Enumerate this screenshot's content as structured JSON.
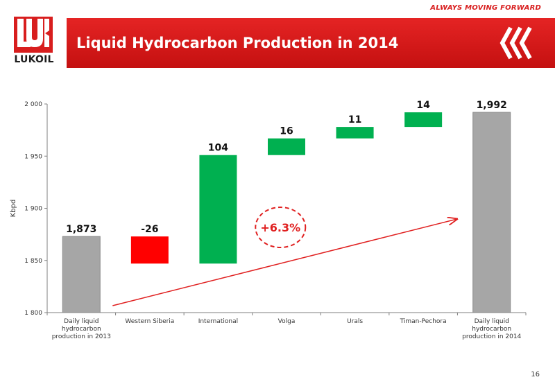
{
  "header": {
    "tagline": "ALWAYS MOVING FORWARD",
    "title": "Liquid Hydrocarbon Production in 2014",
    "logo_text": "LUKOIL",
    "brand_color": "#d81e1e"
  },
  "chart_data": {
    "type": "bar",
    "subtype": "waterfall",
    "ylabel": "Kbpd",
    "ylim": [
      1800,
      2000
    ],
    "yticks": [
      1800,
      1850,
      1900,
      1950,
      2000
    ],
    "ytick_labels": [
      "1 800",
      "1 850",
      "1 900",
      "1 950",
      "2 000"
    ],
    "categories": [
      [
        "Daily liquid",
        "hydrocarbon",
        "production in 2013"
      ],
      [
        "Western Siberia"
      ],
      [
        "International"
      ],
      [
        "Volga"
      ],
      [
        "Urals"
      ],
      [
        "Timan-Pechora"
      ],
      [
        "Daily liquid",
        "hydrocarbon",
        "production in 2014"
      ]
    ],
    "bars": [
      {
        "label": "1,873",
        "start": 1800,
        "end": 1873,
        "kind": "total"
      },
      {
        "label": "-26",
        "start": 1873,
        "end": 1847,
        "kind": "decrease"
      },
      {
        "label": "104",
        "start": 1847,
        "end": 1951,
        "kind": "increase"
      },
      {
        "label": "16",
        "start": 1951,
        "end": 1967,
        "kind": "increase"
      },
      {
        "label": "11",
        "start": 1967,
        "end": 1978,
        "kind": "increase"
      },
      {
        "label": "14",
        "start": 1978,
        "end": 1992,
        "kind": "increase"
      },
      {
        "label": "1,992",
        "start": 1800,
        "end": 1992,
        "kind": "total"
      }
    ],
    "annotation": "+6.3%",
    "colors": {
      "total": "#a6a6a6",
      "increase": "#00b050",
      "decrease": "#ff0000",
      "arrow": "#e02020"
    }
  },
  "page_number": "16"
}
